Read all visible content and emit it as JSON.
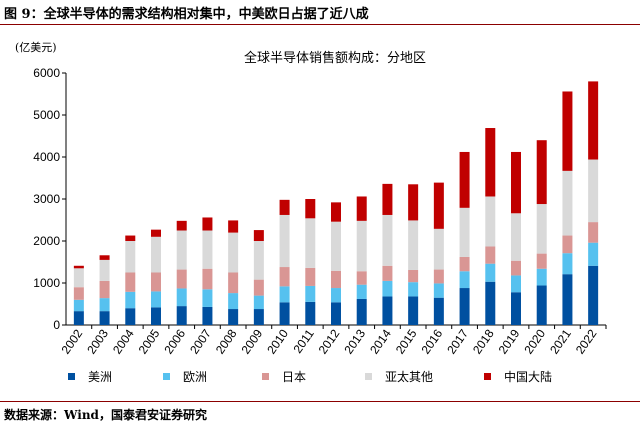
{
  "header": {
    "title": "图 9：全球半导体的需求结构相对集中，中美欧日占据了近八成"
  },
  "footer": {
    "source": "数据来源：Wind，国泰君安证券研究"
  },
  "chart_data": {
    "type": "bar",
    "stacked": true,
    "title": "全球半导体销售额构成：分地区",
    "ylabel": "(亿美元)",
    "xlabel": "",
    "ylim": [
      0,
      6000
    ],
    "yticks": [
      0,
      1000,
      2000,
      3000,
      4000,
      5000,
      6000
    ],
    "grid": false,
    "legend": "bottom",
    "categories": [
      "2002",
      "2003",
      "2004",
      "2005",
      "2006",
      "2007",
      "2008",
      "2009",
      "2010",
      "2011",
      "2012",
      "2013",
      "2014",
      "2015",
      "2016",
      "2017",
      "2018",
      "2019",
      "2020",
      "2021",
      "2022"
    ],
    "series": [
      {
        "name": "美洲",
        "color": "#0050a0",
        "values": [
          330,
          330,
          400,
          420,
          450,
          430,
          380,
          380,
          540,
          550,
          540,
          620,
          680,
          680,
          650,
          880,
          1030,
          780,
          940,
          1210,
          1410
        ]
      },
      {
        "name": "欧洲",
        "color": "#56c1ef",
        "values": [
          270,
          310,
          390,
          380,
          420,
          420,
          380,
          320,
          380,
          380,
          340,
          340,
          370,
          340,
          340,
          400,
          430,
          400,
          400,
          500,
          550
        ]
      },
      {
        "name": "日本",
        "color": "#d99694",
        "values": [
          300,
          410,
          460,
          450,
          450,
          490,
          490,
          380,
          460,
          430,
          410,
          320,
          360,
          290,
          330,
          340,
          410,
          350,
          360,
          420,
          490
        ]
      },
      {
        "name": "亚太其他",
        "color": "#d9d9d9",
        "values": [
          450,
          500,
          750,
          850,
          930,
          910,
          950,
          920,
          1240,
          1180,
          1170,
          1200,
          1210,
          1180,
          970,
          1170,
          1190,
          1130,
          1180,
          1540,
          1490
        ]
      },
      {
        "name": "中国大陆",
        "color": "#c00000",
        "values": [
          60,
          110,
          130,
          170,
          230,
          310,
          290,
          260,
          360,
          460,
          460,
          580,
          740,
          860,
          1100,
          1330,
          1630,
          1460,
          1520,
          1890,
          1860
        ]
      }
    ]
  }
}
